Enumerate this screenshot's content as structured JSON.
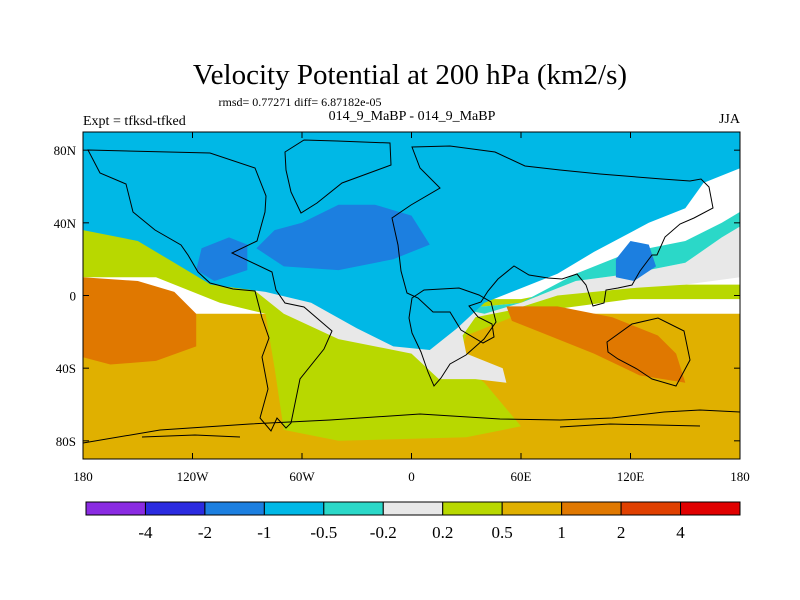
{
  "chart_data": {
    "type": "heatmap",
    "title": "Velocity Potential at 200 hPa (km2/s)",
    "stats": "rmsd= 0.77271 diff= 6.87182e-05",
    "left_label": "Expt = tfksd-tfked",
    "center_label": "014_9_MaBP - 014_9_MaBP",
    "right_label": "JJA",
    "x_ticks": [
      {
        "value": -180,
        "label": "180"
      },
      {
        "value": -120,
        "label": "120W"
      },
      {
        "value": -60,
        "label": "60W"
      },
      {
        "value": 0,
        "label": "0"
      },
      {
        "value": 60,
        "label": "60E"
      },
      {
        "value": 120,
        "label": "120E"
      },
      {
        "value": 180,
        "label": "180"
      }
    ],
    "y_ticks": [
      {
        "value": 80,
        "label": "80N"
      },
      {
        "value": 40,
        "label": "40N"
      },
      {
        "value": 0,
        "label": "0"
      },
      {
        "value": -40,
        "label": "40S"
      },
      {
        "value": -80,
        "label": "80S"
      }
    ],
    "xlim": [
      -180,
      180
    ],
    "ylim": [
      -90,
      90
    ],
    "colorbar": {
      "colors": [
        "#8A2BE2",
        "#2B2BE0",
        "#1C7FE0",
        "#00B8E6",
        "#2BD8C8",
        "#E8E8E8",
        "#B8D800",
        "#E0B000",
        "#E07800",
        "#E04000",
        "#E00000"
      ],
      "labels": [
        "-4",
        "-2",
        "-1",
        "-0.5",
        "-0.2",
        "0.2",
        "0.5",
        "1",
        "2",
        "4"
      ]
    },
    "fields": [
      {
        "level": "0.5 to 1",
        "color": "#E0B000",
        "points": [
          [
            -180,
            -90
          ],
          [
            180,
            -90
          ],
          [
            180,
            -10
          ],
          [
            -180,
            -10
          ]
        ]
      },
      {
        "level": "0.2 to 0.5",
        "color": "#B8D800",
        "points": [
          [
            -180,
            40
          ],
          [
            -140,
            40
          ],
          [
            -100,
            24
          ],
          [
            -60,
            14
          ],
          [
            -30,
            6
          ],
          [
            -10,
            0
          ],
          [
            20,
            -4
          ],
          [
            40,
            -2
          ],
          [
            60,
            -2
          ],
          [
            90,
            4
          ],
          [
            120,
            6
          ],
          [
            180,
            6
          ],
          [
            180,
            -2
          ],
          [
            120,
            -2
          ],
          [
            60,
            -10
          ],
          [
            30,
            -22
          ],
          [
            25,
            -36
          ],
          [
            40,
            -48
          ],
          [
            60,
            -72
          ],
          [
            30,
            -78
          ],
          [
            -40,
            -80
          ],
          [
            -70,
            -74
          ],
          [
            -75,
            -40
          ],
          [
            -80,
            -10
          ],
          [
            -105,
            -4
          ],
          [
            -140,
            10
          ],
          [
            -180,
            10
          ]
        ]
      },
      {
        "level": "-0.2 to 0.2",
        "color": "#E8E8E8",
        "points": [
          [
            -180,
            52
          ],
          [
            -150,
            50
          ],
          [
            -120,
            40
          ],
          [
            -90,
            18
          ],
          [
            -60,
            6
          ],
          [
            -30,
            4
          ],
          [
            0,
            -2
          ],
          [
            20,
            -6
          ],
          [
            40,
            -6
          ],
          [
            60,
            -4
          ],
          [
            90,
            8
          ],
          [
            120,
            12
          ],
          [
            150,
            18
          ],
          [
            170,
            32
          ],
          [
            180,
            38
          ],
          [
            180,
            10
          ],
          [
            150,
            6
          ],
          [
            120,
            4
          ],
          [
            80,
            0
          ],
          [
            55,
            -8
          ],
          [
            35,
            -12
          ],
          [
            28,
            -22
          ],
          [
            30,
            -32
          ],
          [
            50,
            -40
          ],
          [
            52,
            -48
          ],
          [
            35,
            -46
          ],
          [
            15,
            -46
          ],
          [
            0,
            -32
          ],
          [
            -40,
            -24
          ],
          [
            -70,
            -10
          ],
          [
            -90,
            6
          ],
          [
            -120,
            22
          ],
          [
            -150,
            36
          ],
          [
            -180,
            38
          ]
        ]
      },
      {
        "level": "-0.5 to -0.2",
        "color": "#2BD8C8",
        "points": [
          [
            -180,
            70
          ],
          [
            -150,
            64
          ],
          [
            -120,
            58
          ],
          [
            -100,
            48
          ],
          [
            -90,
            32
          ],
          [
            -60,
            18
          ],
          [
            -20,
            12
          ],
          [
            0,
            0
          ],
          [
            20,
            -6
          ],
          [
            40,
            -10
          ],
          [
            60,
            -4
          ],
          [
            90,
            12
          ],
          [
            120,
            24
          ],
          [
            150,
            30
          ],
          [
            170,
            40
          ],
          [
            180,
            46
          ],
          [
            180,
            38
          ],
          [
            170,
            32
          ],
          [
            150,
            18
          ],
          [
            120,
            12
          ],
          [
            90,
            8
          ],
          [
            60,
            -4
          ],
          [
            40,
            -6
          ],
          [
            20,
            -6
          ],
          [
            0,
            -2
          ],
          [
            -30,
            4
          ],
          [
            -60,
            6
          ],
          [
            -90,
            18
          ],
          [
            -120,
            40
          ],
          [
            -150,
            50
          ],
          [
            -180,
            52
          ]
        ]
      },
      {
        "level": "-1 to -0.5",
        "color": "#00B8E6",
        "points": [
          [
            -180,
            90
          ],
          [
            180,
            90
          ],
          [
            180,
            70
          ],
          [
            160,
            62
          ],
          [
            150,
            48
          ],
          [
            130,
            40
          ],
          [
            100,
            24
          ],
          [
            80,
            12
          ],
          [
            60,
            4
          ],
          [
            40,
            -4
          ],
          [
            25,
            -18
          ],
          [
            10,
            -30
          ],
          [
            -10,
            -28
          ],
          [
            -30,
            -18
          ],
          [
            -55,
            -4
          ],
          [
            -80,
            2
          ],
          [
            -110,
            6
          ],
          [
            -130,
            18
          ],
          [
            -150,
            30
          ],
          [
            -180,
            36
          ],
          [
            -180,
            72
          ],
          [
            -160,
            72
          ],
          [
            -150,
            66
          ],
          [
            -130,
            56
          ],
          [
            -110,
            50
          ],
          [
            -140,
            50
          ],
          [
            -180,
            50
          ]
        ]
      },
      {
        "level": "-2 to -1",
        "color": "#1C7FE0",
        "points": [
          [
            -60,
            40
          ],
          [
            -40,
            50
          ],
          [
            -20,
            50
          ],
          [
            0,
            44
          ],
          [
            10,
            28
          ],
          [
            -10,
            20
          ],
          [
            -40,
            14
          ],
          [
            -70,
            16
          ],
          [
            -85,
            26
          ],
          [
            -75,
            36
          ]
        ]
      },
      {
        "level": "-2 to -1",
        "color": "#1C7FE0",
        "points": [
          [
            -115,
            26
          ],
          [
            -100,
            32
          ],
          [
            -90,
            28
          ],
          [
            -90,
            14
          ],
          [
            -108,
            8
          ],
          [
            -118,
            14
          ]
        ]
      },
      {
        "level": "-2 to -1",
        "color": "#1C7FE0",
        "points": [
          [
            112,
            20
          ],
          [
            120,
            30
          ],
          [
            130,
            28
          ],
          [
            134,
            16
          ],
          [
            122,
            8
          ],
          [
            112,
            10
          ]
        ]
      },
      {
        "level": "1 to 2",
        "color": "#E07800",
        "points": [
          [
            -180,
            10
          ],
          [
            -150,
            8
          ],
          [
            -130,
            2
          ],
          [
            -118,
            -10
          ],
          [
            -118,
            -28
          ],
          [
            -140,
            -36
          ],
          [
            -165,
            -38
          ],
          [
            -180,
            -34
          ]
        ]
      },
      {
        "level": "1 to 2",
        "color": "#E07800",
        "points": [
          [
            52,
            -6
          ],
          [
            80,
            -6
          ],
          [
            110,
            -12
          ],
          [
            135,
            -22
          ],
          [
            145,
            -32
          ],
          [
            150,
            -48
          ],
          [
            125,
            -44
          ],
          [
            100,
            -32
          ],
          [
            70,
            -20
          ],
          [
            55,
            -14
          ]
        ]
      }
    ]
  }
}
